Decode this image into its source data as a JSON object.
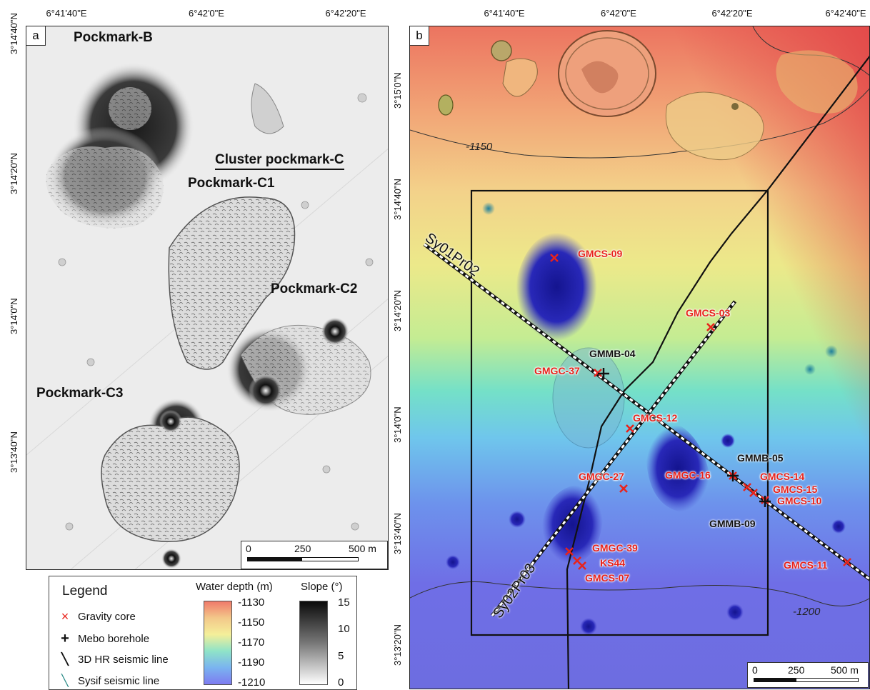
{
  "panel_a": {
    "letter": "a",
    "top_ticks": [
      "6°41'40\"E",
      "6°42'0\"E",
      "6°42'20\"E"
    ],
    "side_ticks": [
      "3°14'40\"N",
      "3°14'20\"N",
      "3°14'0\"N",
      "3°13'40\"N"
    ],
    "labels": {
      "pockmark_b": "Pockmark-B",
      "cluster_c": "Cluster pockmark-C",
      "c1": "Pockmark-C1",
      "c2": "Pockmark-C2",
      "c3": "Pockmark-C3"
    },
    "scale": {
      "zero": "0",
      "mid": "250",
      "end": "500 m"
    }
  },
  "panel_b": {
    "letter": "b",
    "top_ticks": [
      "6°41'40\"E",
      "6°42'0\"E",
      "6°42'20\"E",
      "6°42'40\"E"
    ],
    "side_ticks": [
      "3°15'0\"N",
      "3°14'40\"N",
      "3°14'20\"N",
      "3°14'0\"N",
      "3°13'40\"N",
      "3°13'20\"N"
    ],
    "contours": {
      "upper": "-1150",
      "lower": "-1200"
    },
    "seismic_lines": {
      "line1": "Sy01Pr02",
      "line2": "Sy02Pr03"
    },
    "gravity_cores": [
      "GMCS-09",
      "GMCS-03",
      "GMGC-37",
      "GMCS-12",
      "GMGC-27",
      "GMGC-16",
      "GMCS-14",
      "GMCS-15",
      "GMCS-10",
      "GMCS-11",
      "GMGC-39",
      "KS44",
      "GMCS-07"
    ],
    "boreholes": [
      "GMMB-04",
      "GMMB-05",
      "GMMB-09"
    ],
    "scale": {
      "zero": "0",
      "mid": "250",
      "end": "500 m"
    }
  },
  "legend": {
    "title": "Legend",
    "items": [
      {
        "symbol": "×",
        "label": "Gravity core"
      },
      {
        "symbol": "+",
        "label": "Mebo borehole"
      },
      {
        "symbol": "╲",
        "label": "3D HR seismic line"
      },
      {
        "symbol": "╲",
        "label": "Sysif seismic line"
      }
    ],
    "depth_title": "Water depth (m)",
    "depth_ticks": [
      "-1130",
      "-1150",
      "-1170",
      "-1190",
      "-1210"
    ],
    "slope_title": "Slope (°)",
    "slope_ticks": [
      "15",
      "10",
      "5",
      "0"
    ]
  },
  "colors": {
    "gravity_core": "#e8231c",
    "depth_shallow": "#ee6a55",
    "depth_deep": "#1a1a9c"
  }
}
